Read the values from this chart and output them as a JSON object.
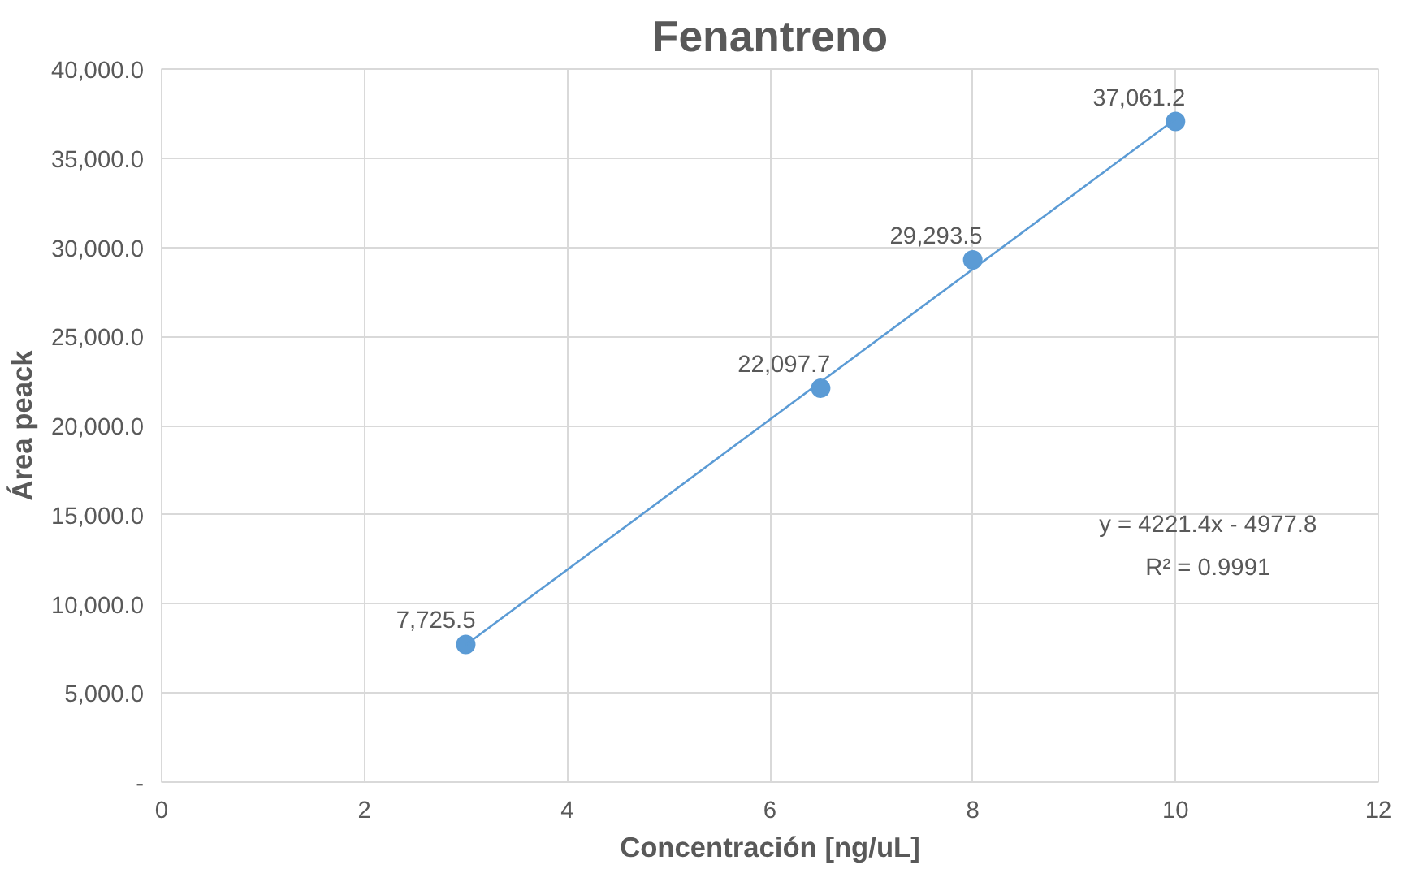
{
  "chart_data": {
    "type": "scatter",
    "title": "Fenantreno",
    "xlabel": "Concentración [ng/uL]",
    "ylabel": "Área peack",
    "x": [
      3,
      6.5,
      8,
      10
    ],
    "series": [
      {
        "marker": "circle",
        "color": "#5b9bd5",
        "values": [
          7725.5,
          22097.7,
          29293.5,
          37061.2
        ],
        "value_labels": [
          "7,725.5",
          "22,097.7",
          "29,293.5",
          "37,061.2"
        ]
      },
      {
        "type": "line",
        "marker": "none",
        "color": "#5b9bd5",
        "x": [
          3,
          10
        ],
        "values": [
          7700,
          37200
        ]
      }
    ],
    "annotations": [
      "y = 4221.4x - 4977.8",
      "R² = 0.9991"
    ],
    "xlim": [
      0,
      12
    ],
    "xticks": [
      0,
      2,
      4,
      6,
      8,
      10,
      12
    ],
    "ylim": [
      0,
      40000
    ],
    "yticks": [
      {
        "value": 0,
        "label": "-"
      },
      {
        "value": 5000,
        "label": "5,000.0"
      },
      {
        "value": 10000,
        "label": "10,000.0"
      },
      {
        "value": 15000,
        "label": "15,000.0"
      },
      {
        "value": 20000,
        "label": "20,000.0"
      },
      {
        "value": 25000,
        "label": "25,000.0"
      },
      {
        "value": 30000,
        "label": "30,000.0"
      },
      {
        "value": 35000,
        "label": "35,000.0"
      },
      {
        "value": 40000,
        "label": "40,000.0"
      }
    ],
    "grid": true,
    "line_style": "solid"
  }
}
